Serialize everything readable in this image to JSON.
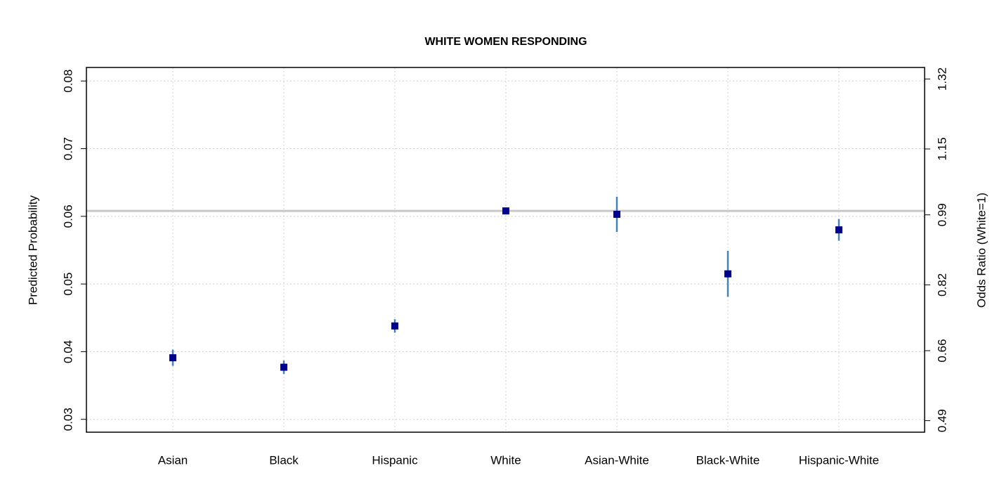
{
  "chart_data": {
    "type": "errorpoint",
    "title": "WHITE WOMEN RESPONDING",
    "y_label": "Predicted Probability",
    "y2_label": "Odds Ratio (White=1)",
    "categories": [
      "Asian",
      "Black",
      "Hispanic",
      "White",
      "Asian-White",
      "Black-White",
      "Hispanic-White"
    ],
    "values": [
      0.0391,
      0.0377,
      0.0438,
      0.0608,
      0.0603,
      0.0515,
      0.058
    ],
    "errors": [
      0.0012,
      0.001,
      0.001,
      0.0003,
      0.0026,
      0.0034,
      0.0016
    ],
    "point_color": "#00008b",
    "error_color": "#4682b4",
    "reference_line": 0.0608,
    "reference_color": "#c8c8c8",
    "ylim": [
      0.0281,
      0.082
    ],
    "yticks": [
      0.03,
      0.04,
      0.05,
      0.06,
      0.07,
      0.08
    ],
    "y2lim": [
      0.462,
      1.348
    ],
    "y2ticks": [
      0.49,
      0.66,
      0.82,
      0.99,
      1.15,
      1.32
    ],
    "grid": true
  }
}
